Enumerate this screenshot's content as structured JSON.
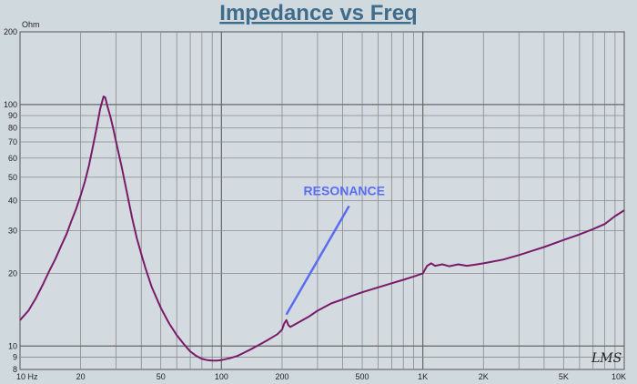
{
  "chart_data": {
    "type": "line",
    "title": "Impedance vs Freq",
    "y_unit": "Ohm",
    "x_scale": "log",
    "y_scale": "log",
    "xlim": [
      10,
      10000
    ],
    "ylim": [
      8,
      200
    ],
    "grid": true,
    "x_ticks": [
      {
        "value": 10,
        "label": "10  Hz"
      },
      {
        "value": 20,
        "label": "20"
      },
      {
        "value": 50,
        "label": "50"
      },
      {
        "value": 100,
        "label": "100"
      },
      {
        "value": 200,
        "label": "200"
      },
      {
        "value": 500,
        "label": "500"
      },
      {
        "value": 1000,
        "label": "1K"
      },
      {
        "value": 2000,
        "label": "2K"
      },
      {
        "value": 5000,
        "label": "5K"
      },
      {
        "value": 10000,
        "label": "10K"
      }
    ],
    "y_ticks": [
      {
        "value": 200,
        "label": "200"
      },
      {
        "value": 100,
        "label": "100"
      },
      {
        "value": 90,
        "label": "90"
      },
      {
        "value": 80,
        "label": "80"
      },
      {
        "value": 70,
        "label": "70"
      },
      {
        "value": 60,
        "label": "60"
      },
      {
        "value": 50,
        "label": "50"
      },
      {
        "value": 40,
        "label": "40"
      },
      {
        "value": 30,
        "label": "30"
      },
      {
        "value": 20,
        "label": "20"
      },
      {
        "value": 10,
        "label": "10"
      },
      {
        "value": 9,
        "label": "9"
      },
      {
        "value": 8,
        "label": "8"
      }
    ],
    "series": [
      {
        "color": "#7a1a6a",
        "points": [
          [
            10,
            12.8
          ],
          [
            11,
            14
          ],
          [
            12,
            15.8
          ],
          [
            13,
            18
          ],
          [
            14,
            20.5
          ],
          [
            15,
            23
          ],
          [
            16,
            26
          ],
          [
            17,
            29
          ],
          [
            18,
            33
          ],
          [
            19,
            37
          ],
          [
            20,
            42
          ],
          [
            21,
            48
          ],
          [
            22,
            56
          ],
          [
            23,
            67
          ],
          [
            24,
            80
          ],
          [
            25,
            96
          ],
          [
            26,
            108
          ],
          [
            26.5,
            107
          ],
          [
            27,
            100
          ],
          [
            28,
            90
          ],
          [
            29,
            80
          ],
          [
            30,
            70
          ],
          [
            32,
            55
          ],
          [
            34,
            43
          ],
          [
            36,
            34
          ],
          [
            38,
            28
          ],
          [
            40,
            24
          ],
          [
            42,
            21
          ],
          [
            45,
            17.6
          ],
          [
            50,
            14.4
          ],
          [
            55,
            12.4
          ],
          [
            60,
            11.1
          ],
          [
            65,
            10.2
          ],
          [
            70,
            9.5
          ],
          [
            75,
            9.1
          ],
          [
            80,
            8.85
          ],
          [
            85,
            8.75
          ],
          [
            90,
            8.7
          ],
          [
            95,
            8.7
          ],
          [
            100,
            8.75
          ],
          [
            110,
            8.9
          ],
          [
            120,
            9.1
          ],
          [
            130,
            9.4
          ],
          [
            140,
            9.7
          ],
          [
            150,
            10
          ],
          [
            160,
            10.3
          ],
          [
            170,
            10.6
          ],
          [
            180,
            10.9
          ],
          [
            190,
            11.2
          ],
          [
            200,
            11.7
          ],
          [
            205,
            12.4
          ],
          [
            210,
            12.8
          ],
          [
            215,
            12.2
          ],
          [
            220,
            12.0
          ],
          [
            240,
            12.5
          ],
          [
            270,
            13.2
          ],
          [
            300,
            14.0
          ],
          [
            350,
            15.0
          ],
          [
            400,
            15.6
          ],
          [
            450,
            16.2
          ],
          [
            500,
            16.7
          ],
          [
            600,
            17.5
          ],
          [
            700,
            18.2
          ],
          [
            800,
            18.8
          ],
          [
            900,
            19.4
          ],
          [
            1000,
            20.0
          ],
          [
            1050,
            21.5
          ],
          [
            1100,
            22.0
          ],
          [
            1150,
            21.5
          ],
          [
            1250,
            21.8
          ],
          [
            1350,
            21.4
          ],
          [
            1500,
            21.8
          ],
          [
            1650,
            21.5
          ],
          [
            1800,
            21.7
          ],
          [
            2000,
            22.0
          ],
          [
            2500,
            22.8
          ],
          [
            3000,
            23.8
          ],
          [
            3500,
            24.8
          ],
          [
            4000,
            25.7
          ],
          [
            5000,
            27.5
          ],
          [
            6000,
            29.0
          ],
          [
            7000,
            30.5
          ],
          [
            8000,
            32.0
          ],
          [
            9000,
            34.5
          ],
          [
            10000,
            36.5
          ]
        ]
      }
    ],
    "annotations": [
      {
        "text": "RESONANCE",
        "arrow_from": [
          430,
          38
        ],
        "arrow_to": [
          210,
          13.5
        ],
        "color": "#5a6cf0"
      }
    ],
    "logo": "LMS"
  }
}
